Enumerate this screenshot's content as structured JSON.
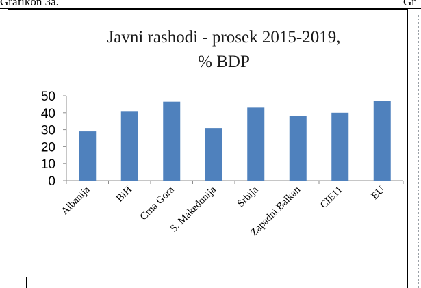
{
  "document": {
    "caption_left": "Grafikon 3a.",
    "caption_right": "Gr"
  },
  "chart_data": {
    "type": "bar",
    "title_lines": [
      "Javni rashodi - prosek 2015-2019,",
      "% BDP"
    ],
    "categories": [
      "Albanija",
      "BiH",
      "Crna Gora",
      "S. Makedonija",
      "Srbija",
      "Zapadni Balkan",
      "CIE11",
      "EU"
    ],
    "values": [
      29,
      41,
      46.5,
      31,
      43,
      38,
      40,
      47
    ],
    "ylim": [
      0,
      50
    ],
    "yticks": [
      0,
      10,
      20,
      30,
      40,
      50
    ],
    "xlabel": "",
    "ylabel": "",
    "grid": false,
    "bar_color": "#4f81bd"
  }
}
